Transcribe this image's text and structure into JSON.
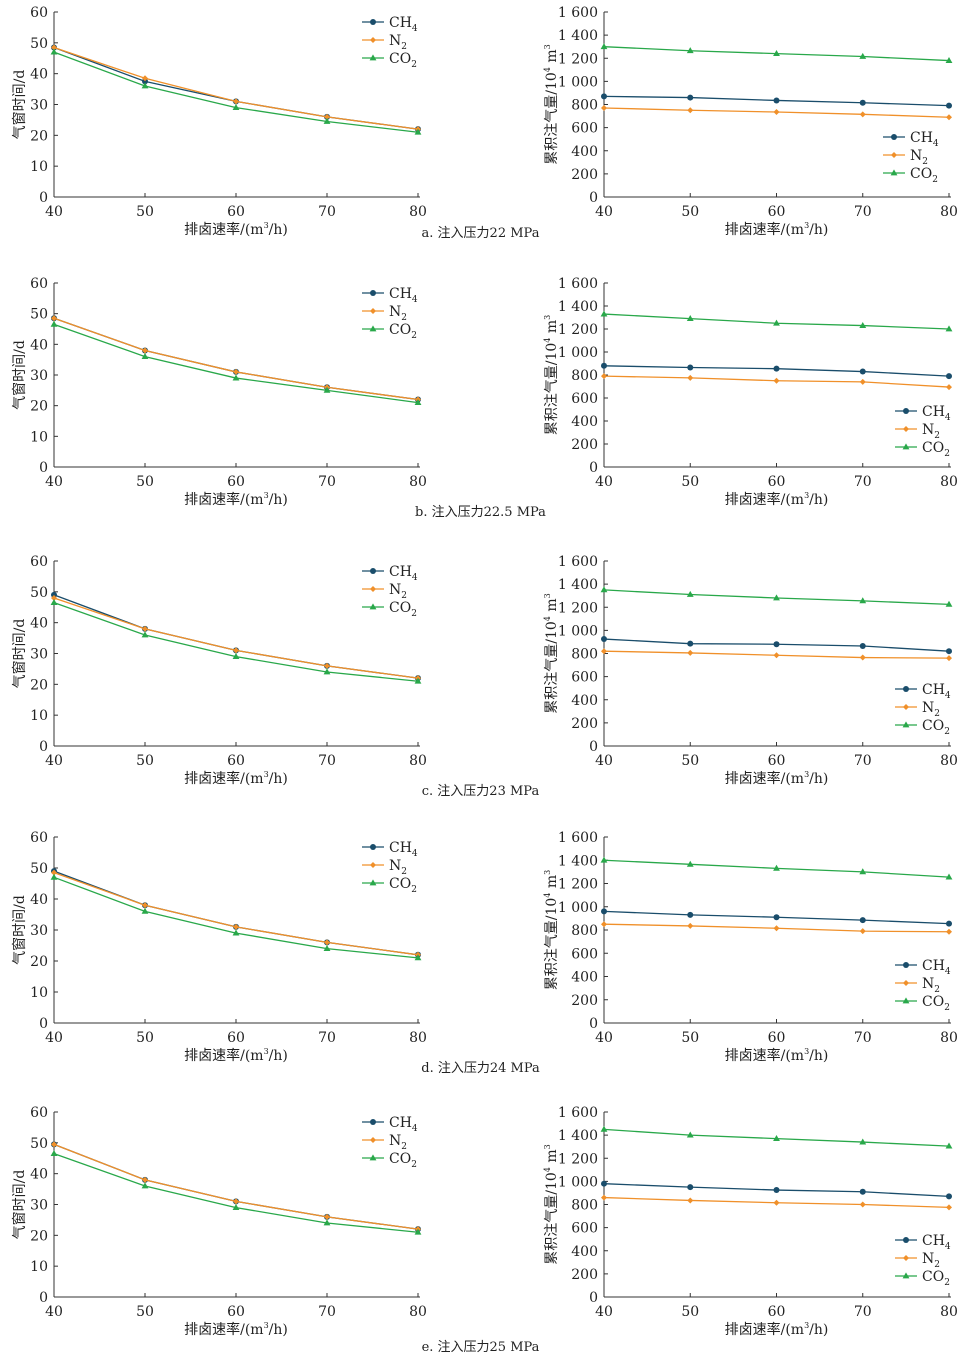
{
  "colors": {
    "CH4": "#1a4d6b",
    "N2": "#f0902a",
    "CO2": "#29a84a"
  },
  "legend": [
    "CH",
    "N",
    "CO"
  ],
  "legend_subscripts": [
    "4",
    "2",
    "2"
  ],
  "left_axis": {
    "ylabel": "气窗时间/d",
    "xlabel": "排卤速率/(m",
    "xlabel_sup": "3",
    "xlabel_end": "/h)",
    "yticks": [
      "0",
      "10",
      "20",
      "30",
      "40",
      "50",
      "60"
    ],
    "xticks": [
      "40",
      "50",
      "60",
      "70",
      "80"
    ]
  },
  "right_axis": {
    "ylabel": "累积注气量/10",
    "ylabel_sup": "4",
    "ylabel_end": " m",
    "ylabel_sup2": "3",
    "xlabel": "排卤速率/(m",
    "xlabel_sup": "3",
    "xlabel_end": "/h)",
    "yticks": [
      "0",
      "200",
      "400",
      "600",
      "800",
      "1 000",
      "1 200",
      "1 400",
      "1 600"
    ],
    "xticks": [
      "40",
      "50",
      "60",
      "70",
      "80"
    ]
  },
  "panels": [
    {
      "caption": "a. 注入压力22 MPa"
    },
    {
      "caption": "b. 注入压力22.5 MPa"
    },
    {
      "caption": "c. 注入压力23 MPa"
    },
    {
      "caption": "d. 注入压力24 MPa"
    },
    {
      "caption": "e. 注入压力25 MPa"
    }
  ],
  "chart_data": [
    {
      "type": "line",
      "x": [
        40,
        50,
        60,
        70,
        80
      ],
      "xlabel": "排卤速率/(m³/h)",
      "ylabel": "气窗时间/d",
      "ylim": [
        0,
        60
      ],
      "series": [
        {
          "name": "CH4",
          "values": [
            48.5,
            37.5,
            31,
            26,
            22
          ]
        },
        {
          "name": "N2",
          "values": [
            48.5,
            38.5,
            31,
            26,
            22
          ]
        },
        {
          "name": "CO2",
          "values": [
            47,
            36,
            29,
            24.5,
            21
          ]
        }
      ]
    },
    {
      "type": "line",
      "x": [
        40,
        50,
        60,
        70,
        80
      ],
      "xlabel": "排卤速率/(m³/h)",
      "ylabel": "累积注气量/10⁴ m³",
      "ylim": [
        0,
        1600
      ],
      "series": [
        {
          "name": "CH4",
          "values": [
            870,
            860,
            835,
            815,
            790
          ]
        },
        {
          "name": "N2",
          "values": [
            770,
            750,
            735,
            715,
            690
          ]
        },
        {
          "name": "CO2",
          "values": [
            1300,
            1265,
            1240,
            1215,
            1180
          ]
        }
      ]
    },
    {
      "type": "line",
      "x": [
        40,
        50,
        60,
        70,
        80
      ],
      "xlabel": "排卤速率/(m³/h)",
      "ylabel": "气窗时间/d",
      "ylim": [
        0,
        60
      ],
      "series": [
        {
          "name": "CH4",
          "values": [
            48.5,
            38,
            31,
            26,
            22
          ]
        },
        {
          "name": "N2",
          "values": [
            48.5,
            38,
            31,
            26,
            22
          ]
        },
        {
          "name": "CO2",
          "values": [
            46.5,
            36,
            29,
            25,
            21
          ]
        }
      ]
    },
    {
      "type": "line",
      "x": [
        40,
        50,
        60,
        70,
        80
      ],
      "xlabel": "排卤速率/(m³/h)",
      "ylabel": "累积注气量/10⁴ m³",
      "ylim": [
        0,
        1600
      ],
      "series": [
        {
          "name": "CH4",
          "values": [
            880,
            865,
            855,
            830,
            790
          ]
        },
        {
          "name": "N2",
          "values": [
            790,
            775,
            750,
            740,
            695
          ]
        },
        {
          "name": "CO2",
          "values": [
            1330,
            1290,
            1250,
            1230,
            1200
          ]
        }
      ]
    },
    {
      "type": "line",
      "x": [
        40,
        50,
        60,
        70,
        80
      ],
      "xlabel": "排卤速率/(m³/h)",
      "ylabel": "气窗时间/d",
      "ylim": [
        0,
        60
      ],
      "series": [
        {
          "name": "CH4",
          "values": [
            49,
            38,
            31,
            26,
            22
          ]
        },
        {
          "name": "N2",
          "values": [
            48,
            38,
            31,
            26,
            22
          ]
        },
        {
          "name": "CO2",
          "values": [
            46.5,
            36,
            29,
            24,
            21
          ]
        }
      ]
    },
    {
      "type": "line",
      "x": [
        40,
        50,
        60,
        70,
        80
      ],
      "xlabel": "排卤速率/(m³/h)",
      "ylabel": "累积注气量/10⁴ m³",
      "ylim": [
        0,
        1600
      ],
      "series": [
        {
          "name": "CH4",
          "values": [
            925,
            885,
            880,
            865,
            820
          ]
        },
        {
          "name": "N2",
          "values": [
            820,
            805,
            785,
            765,
            760
          ]
        },
        {
          "name": "CO2",
          "values": [
            1350,
            1310,
            1280,
            1255,
            1225
          ]
        }
      ]
    },
    {
      "type": "line",
      "x": [
        40,
        50,
        60,
        70,
        80
      ],
      "xlabel": "排卤速率/(m³/h)",
      "ylabel": "气窗时间/d",
      "ylim": [
        0,
        60
      ],
      "series": [
        {
          "name": "CH4",
          "values": [
            49,
            38,
            31,
            26,
            22
          ]
        },
        {
          "name": "N2",
          "values": [
            48.5,
            38,
            31,
            26,
            22
          ]
        },
        {
          "name": "CO2",
          "values": [
            47,
            36,
            29,
            24,
            21
          ]
        }
      ]
    },
    {
      "type": "line",
      "x": [
        40,
        50,
        60,
        70,
        80
      ],
      "xlabel": "排卤速率/(m³/h)",
      "ylabel": "累积注气量/10⁴ m³",
      "ylim": [
        0,
        1600
      ],
      "series": [
        {
          "name": "CH4",
          "values": [
            960,
            930,
            910,
            885,
            855
          ]
        },
        {
          "name": "N2",
          "values": [
            850,
            835,
            815,
            790,
            785
          ]
        },
        {
          "name": "CO2",
          "values": [
            1400,
            1365,
            1330,
            1300,
            1255
          ]
        }
      ]
    },
    {
      "type": "line",
      "x": [
        40,
        50,
        60,
        70,
        80
      ],
      "xlabel": "排卤速率/(m³/h)",
      "ylabel": "气窗时间/d",
      "ylim": [
        0,
        60
      ],
      "series": [
        {
          "name": "CH4",
          "values": [
            49.5,
            38,
            31,
            26,
            22
          ]
        },
        {
          "name": "N2",
          "values": [
            49.5,
            38,
            31,
            26,
            22
          ]
        },
        {
          "name": "CO2",
          "values": [
            46.5,
            36,
            29,
            24,
            21
          ]
        }
      ]
    },
    {
      "type": "line",
      "x": [
        40,
        50,
        60,
        70,
        80
      ],
      "xlabel": "排卤速率/(m³/h)",
      "ylabel": "累积注气量/10⁴ m³",
      "ylim": [
        0,
        1600
      ],
      "series": [
        {
          "name": "CH4",
          "values": [
            980,
            950,
            925,
            910,
            870
          ]
        },
        {
          "name": "N2",
          "values": [
            860,
            835,
            815,
            800,
            775
          ]
        },
        {
          "name": "CO2",
          "values": [
            1450,
            1400,
            1370,
            1340,
            1305
          ]
        }
      ]
    }
  ]
}
